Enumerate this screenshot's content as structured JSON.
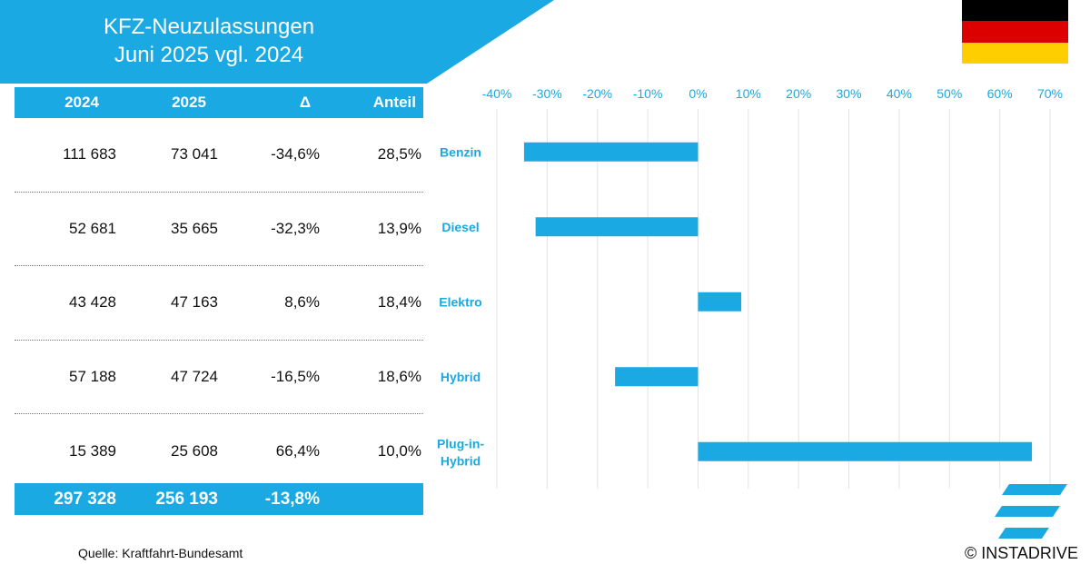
{
  "header": {
    "title_line1": "KFZ-Neuzulassungen",
    "title_line2": "Juni 2025 vgl. 2024"
  },
  "flag": {
    "name": "germany-flag",
    "colors": [
      "#000000",
      "#dd0000",
      "#ffce00"
    ]
  },
  "table": {
    "headers": [
      "2024",
      "2025",
      "Δ",
      "Anteil"
    ],
    "rows": [
      [
        "111 683",
        "73 041",
        "-34,6%",
        "28,5%"
      ],
      [
        "52 681",
        "35 665",
        "-32,3%",
        "13,9%"
      ],
      [
        "43 428",
        "47 163",
        "8,6%",
        "18,4%"
      ],
      [
        "57 188",
        "47 724",
        "-16,5%",
        "18,6%"
      ],
      [
        "15 389",
        "25 608",
        "66,4%",
        "10,0%"
      ]
    ],
    "total": [
      "297 328",
      "256 193",
      "-13,8%"
    ]
  },
  "chart_data": {
    "type": "bar",
    "orientation": "horizontal",
    "categories": [
      "Benzin",
      "Diesel",
      "Elektro",
      "Hybrid",
      "Plug-in-Hybrid"
    ],
    "category_lines": [
      [
        "Benzin"
      ],
      [
        "Diesel"
      ],
      [
        "Elektro"
      ],
      [
        "Hybrid"
      ],
      [
        "Plug-in-",
        "Hybrid"
      ]
    ],
    "values": [
      -34.6,
      -32.3,
      8.6,
      -16.5,
      66.4
    ],
    "xlim": [
      -40,
      70
    ],
    "xticks": [
      -40,
      -30,
      -20,
      -10,
      0,
      10,
      20,
      30,
      40,
      50,
      60,
      70
    ],
    "tick_labels": [
      "-40%",
      "-30%",
      "-20%",
      "-10%",
      "0%",
      "10%",
      "20%",
      "30%",
      "40%",
      "50%",
      "60%",
      "70%"
    ],
    "grid": "vertical",
    "bar_color": "#1aa9e2",
    "label_color": "#1aa9e2"
  },
  "footer": {
    "source": "Quelle: Kraftfahrt-Bundesamt",
    "copyright": "© INSTADRIVE",
    "logo_icon": "instadrive-logo-icon"
  }
}
